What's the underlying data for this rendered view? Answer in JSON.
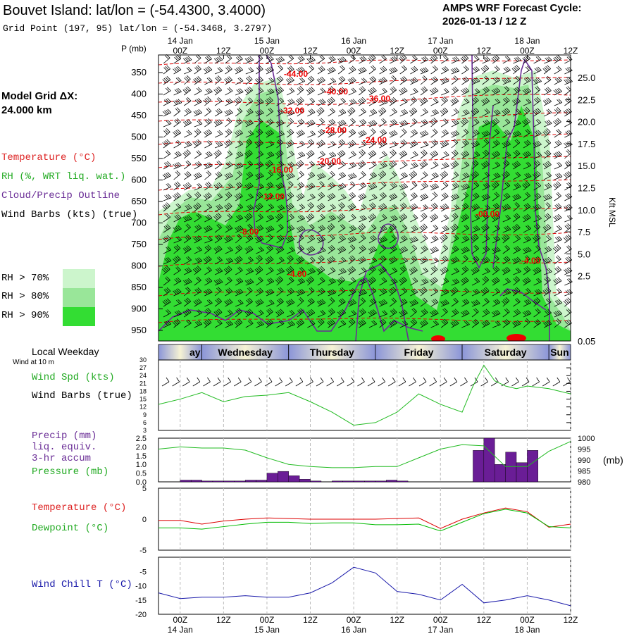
{
  "header": {
    "title": "Bouvet Island:  lat/lon = (-54.4300, 3.4000)",
    "gridpoint": "Grid Point (197, 95) lat/lon = (-54.3468, 3.2797)",
    "cycle_line1": "AMPS WRF Forecast Cycle:",
    "cycle_line2": "2026-01-13 / 12  Z"
  },
  "legend": {
    "model_grid_1": "Model Grid ΔX:",
    "model_grid_2": " 24.000 km",
    "temperature": "Temperature (°C)",
    "rh": "RH (%, WRT liq. wat.)",
    "cloud": "Cloud/Precip Outline",
    "wind": "Wind Barbs (kts) (true)",
    "rh70": "RH > 70%",
    "rh80": "RH > 80%",
    "rh90": "RH > 90%",
    "rh70_color": "#ccf5cc",
    "rh80_color": "#99e699",
    "rh90_color": "#33dd33",
    "local_weekday": "Local Weekday",
    "wind_at": "Wind at 10 m",
    "wind_spd": "Wind Spd (kts)",
    "wind_barbs": "Wind Barbs (true)",
    "precip": "Precip (mm)",
    "liq": "liq. equiv.",
    "accum": "3-hr accum",
    "pressure": "Pressure (mb)",
    "temp2": "Temperature (°C)",
    "dewpoint": "Dewpoint (°C)",
    "windchill": "Wind Chill T (°C)"
  },
  "time_axis": {
    "top_dates": [
      "14 Jan",
      "15 Jan",
      "16 Jan",
      "17 Jan",
      "18 Jan"
    ],
    "hour_labels": [
      "00Z",
      "12Z",
      "00Z",
      "12Z",
      "00Z",
      "12Z",
      "00Z",
      "12Z",
      "00Z",
      "12Z"
    ],
    "bottom_dates": [
      "14 Jan",
      "15 Jan",
      "16 Jan",
      "17 Jan",
      "18 Jan"
    ],
    "weekdays": [
      "ay",
      "Wednesday",
      "Thursday",
      "Friday",
      "Saturday",
      "Sun"
    ]
  },
  "units": {
    "p_axis": "P (mb)",
    "kft": "Kft MSL",
    "mb": "(mb)"
  },
  "chart_data": [
    {
      "type": "heatmap",
      "name": "cross-section",
      "y_left_label": "P (mb)",
      "y_left_ticks": [
        "350",
        "400",
        "450",
        "500",
        "550",
        "600",
        "650",
        "700",
        "750",
        "800",
        "850",
        "900",
        "950"
      ],
      "y_right_label": "Kft MSL",
      "y_right_ticks": [
        "25.0",
        "22.5",
        "20.0",
        "17.5",
        "15.0",
        "12.5",
        "10.0",
        "7.5",
        "5.0",
        "2.5",
        "0.05"
      ],
      "temp_labels": [
        "-44.00",
        "-40.00",
        "-36.00",
        "-32.00",
        "-28.00",
        "-24.00",
        "-20.00",
        "-16.00",
        "-12.00",
        "-8.00",
        "-4.00",
        "-00.00",
        "-4.00"
      ],
      "x_hours": [
        0,
        12,
        24,
        36,
        48,
        60,
        72,
        84,
        96,
        108
      ]
    },
    {
      "type": "line",
      "name": "wind-speed",
      "ylabel": "Wind Spd (kts)",
      "ylim": [
        3,
        30
      ],
      "y_ticks": [
        "30",
        "27",
        "24",
        "21",
        "18",
        "15",
        "12",
        "9",
        "6",
        "3"
      ],
      "x": [
        -6,
        0,
        6,
        12,
        18,
        24,
        30,
        36,
        42,
        48,
        54,
        60,
        66,
        72,
        78,
        81,
        84,
        87,
        90,
        93,
        96,
        102,
        108
      ],
      "values": [
        13,
        15,
        17.5,
        14,
        16,
        16.5,
        17.5,
        14,
        10,
        5,
        6,
        10,
        17,
        13,
        10,
        20,
        28,
        22,
        20,
        19,
        20,
        19,
        17
      ]
    },
    {
      "type": "bar",
      "name": "precip-pressure",
      "ylabel_left": "Precip (mm)",
      "ylim_left": [
        0,
        2.5
      ],
      "y_left_ticks": [
        "2.5",
        "2.0",
        "1.5",
        "1.0",
        "0.5",
        "0.0"
      ],
      "ylabel_right": "Pressure (mb)",
      "ylim_right": [
        980,
        1000
      ],
      "y_right_ticks": [
        "1000",
        "995",
        "990",
        "985",
        "980"
      ],
      "precip_x": [
        0,
        3,
        6,
        9,
        12,
        15,
        18,
        21,
        24,
        27,
        30,
        33,
        36,
        39,
        42,
        45,
        48,
        51,
        54,
        57,
        60,
        63,
        66,
        69,
        72,
        75,
        78,
        81,
        84,
        87,
        90,
        93,
        96,
        99
      ],
      "precip_values": [
        0.1,
        0.1,
        0.05,
        0.05,
        0.05,
        0.05,
        0.1,
        0.1,
        0.5,
        0.6,
        0.35,
        0.15,
        0.05,
        0.0,
        0.05,
        0.05,
        0.05,
        0.05,
        0.05,
        0.1,
        0.05,
        0.0,
        0.0,
        0.0,
        0.0,
        0.0,
        0.0,
        1.8,
        2.5,
        1.0,
        1.7,
        1.1,
        1.8,
        0.0
      ],
      "pressure_x": [
        -6,
        0,
        6,
        12,
        18,
        24,
        30,
        36,
        42,
        48,
        54,
        60,
        66,
        72,
        78,
        84,
        90,
        96,
        102,
        108
      ],
      "pressure_values": [
        995,
        996,
        995.5,
        995.5,
        994.5,
        991,
        988,
        987,
        986.5,
        986.5,
        987,
        987,
        991,
        995,
        997,
        996.5,
        987,
        987,
        994,
        998.5
      ]
    },
    {
      "type": "line",
      "name": "temperature-dewpoint",
      "ylim": [
        -5,
        5
      ],
      "y_ticks": [
        "5",
        "0",
        "-5"
      ],
      "x": [
        -6,
        0,
        6,
        12,
        18,
        24,
        30,
        36,
        42,
        48,
        54,
        60,
        66,
        72,
        78,
        84,
        90,
        96,
        102,
        108
      ],
      "series": [
        {
          "name": "Temperature (°C)",
          "color": "#dd0000",
          "values": [
            -0.2,
            -0.2,
            -0.8,
            -0.3,
            0.0,
            0.2,
            0.1,
            0.0,
            0.0,
            0.0,
            0.0,
            0.1,
            0.2,
            -1.5,
            0.0,
            1.0,
            1.8,
            1.2,
            -1.3,
            -0.8
          ]
        },
        {
          "name": "Dewpoint (°C)",
          "color": "#00bb00",
          "values": [
            -1.4,
            -1.4,
            -1.6,
            -1.2,
            -0.8,
            -0.5,
            -0.5,
            -0.7,
            -0.6,
            -0.6,
            -0.9,
            -0.9,
            -0.8,
            -1.9,
            -0.5,
            0.9,
            1.6,
            1.0,
            -1.2,
            -1.4
          ]
        }
      ]
    },
    {
      "type": "line",
      "name": "wind-chill",
      "ylabel": "Wind Chill T (°C)",
      "ylim": [
        -20,
        0
      ],
      "y_ticks": [
        "-5",
        "-10",
        "-15",
        "-20"
      ],
      "x": [
        -6,
        0,
        6,
        12,
        18,
        24,
        30,
        36,
        42,
        48,
        54,
        60,
        66,
        72,
        78,
        84,
        90,
        96,
        102,
        108
      ],
      "values": [
        -12.5,
        -14.5,
        -14,
        -14,
        -13.5,
        -14,
        -14,
        -12.5,
        -9,
        -3.5,
        -5.5,
        -12,
        -13,
        -15,
        -9.5,
        -16,
        -15,
        -13.5,
        -15,
        -17
      ]
    }
  ]
}
